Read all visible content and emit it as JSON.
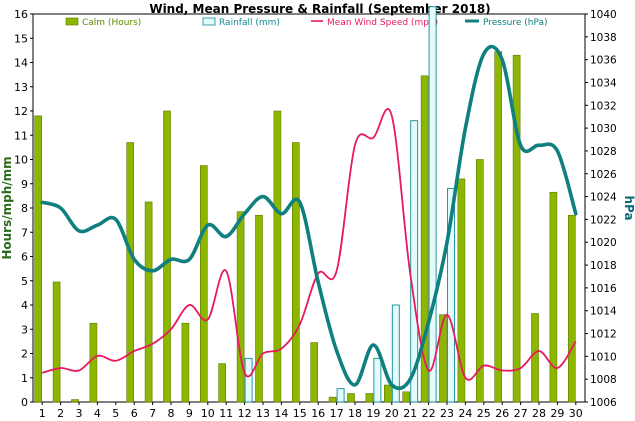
{
  "chart_data": {
    "type": "bar+line",
    "title": "Wind, Mean Pressure & Rainfall (September 2018)",
    "ylabel_left": "Hours/mph/mm",
    "ylabel_right": "hPa",
    "ylim_left": [
      0,
      16
    ],
    "ylim_right": [
      1006,
      1040
    ],
    "yticks_left": [
      "0",
      "1",
      "2",
      "3",
      "4",
      "5",
      "6",
      "7",
      "8",
      "9",
      "10",
      "11",
      "12",
      "13",
      "14",
      "15",
      "16"
    ],
    "yticks_right": [
      "1006",
      "1008",
      "1010",
      "1012",
      "1014",
      "1016",
      "1018",
      "1020",
      "1022",
      "1024",
      "1026",
      "1028",
      "1030",
      "1032",
      "1034",
      "1036",
      "1038",
      "1040"
    ],
    "categories": [
      "1",
      "2",
      "3",
      "4",
      "5",
      "6",
      "7",
      "8",
      "9",
      "10",
      "11",
      "12",
      "13",
      "14",
      "15",
      "16",
      "17",
      "18",
      "19",
      "20",
      "21",
      "22",
      "23",
      "24",
      "25",
      "26",
      "27",
      "28",
      "29",
      "30"
    ],
    "series": [
      {
        "name": "Calm (Hours)",
        "type": "bar",
        "axis": "left",
        "color": "#8db600",
        "values": [
          11.8,
          4.95,
          0.1,
          3.25,
          0,
          10.7,
          8.25,
          12.0,
          3.25,
          9.75,
          1.58,
          7.85,
          7.7,
          12.0,
          10.7,
          2.45,
          0.2,
          0.35,
          0.35,
          0.7,
          0.42,
          13.45,
          3.6,
          9.2,
          10.0,
          14.45,
          14.3,
          3.65,
          8.65,
          7.7
        ]
      },
      {
        "name": "Rainfall (mm)",
        "type": "bar",
        "axis": "left",
        "color": "#e4fbfb",
        "edge": "#128a96",
        "values": [
          0,
          0,
          0,
          0,
          0,
          0,
          0,
          0,
          0,
          0,
          0,
          1.8,
          0,
          0,
          0,
          0,
          0.55,
          0,
          1.8,
          4.0,
          11.6,
          16.3,
          8.8,
          0,
          0,
          0,
          0,
          0,
          0,
          0
        ]
      },
      {
        "name": "Mean Wind Speed (mph)",
        "type": "line",
        "axis": "left",
        "color": "#e8195e",
        "values": [
          1.2,
          1.4,
          1.3,
          1.9,
          1.7,
          2.1,
          2.4,
          3.0,
          4.0,
          3.4,
          5.4,
          1.2,
          2.0,
          2.2,
          3.2,
          5.3,
          5.4,
          10.6,
          10.9,
          11.8,
          5.3,
          1.3,
          3.6,
          1.0,
          1.5,
          1.3,
          1.4,
          2.1,
          1.4,
          2.5
        ]
      },
      {
        "name": "Pressure (hPa)",
        "type": "line",
        "axis": "right",
        "color": "#0f7f7f",
        "values": [
          1023.5,
          1023.0,
          1021.0,
          1021.5,
          1022.0,
          1018.5,
          1017.5,
          1018.5,
          1018.5,
          1021.5,
          1020.5,
          1022.5,
          1024.0,
          1022.5,
          1023.5,
          1016.5,
          1010.5,
          1007.5,
          1011.0,
          1007.5,
          1008.0,
          1013.0,
          1020.0,
          1030.0,
          1036.5,
          1036.0,
          1028.5,
          1028.5,
          1028.0,
          1022.5
        ]
      }
    ],
    "legend": {
      "position": "top",
      "items": [
        "Calm (Hours)",
        "Rainfall (mm)",
        "Mean Wind Speed (mph)",
        "Pressure (hPa)"
      ]
    },
    "grid": false
  }
}
